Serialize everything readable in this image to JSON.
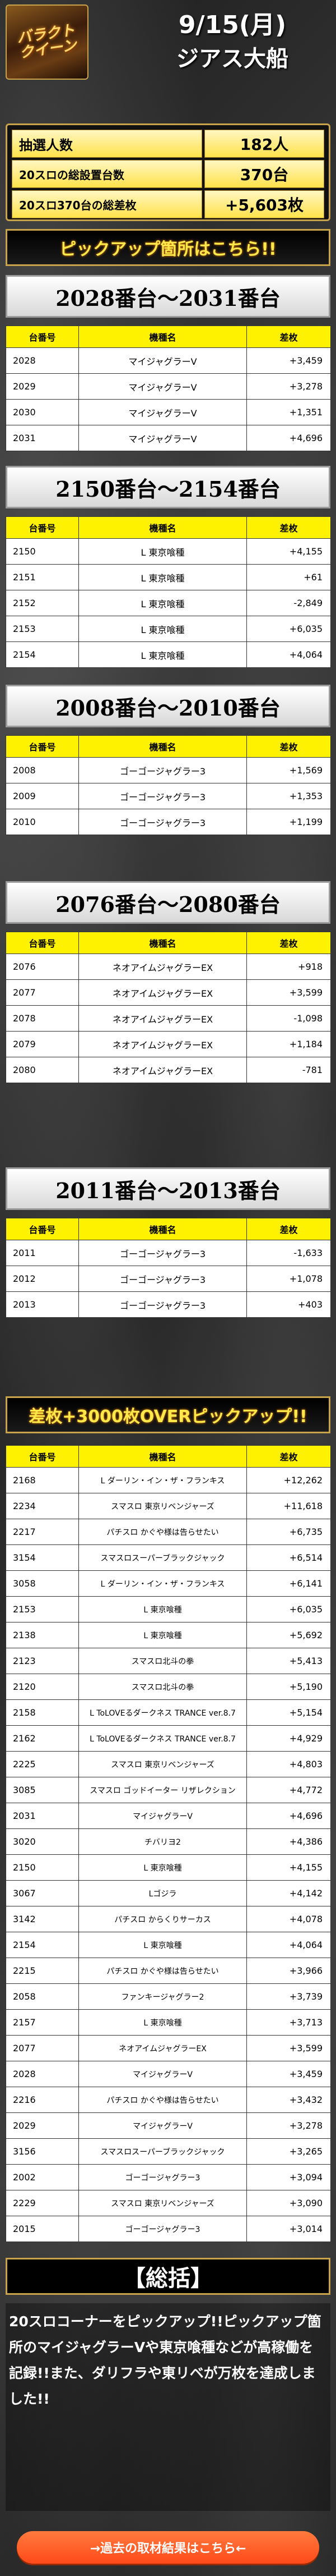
{
  "header": {
    "logo_text": "バラクト\nクイーン",
    "date": "9/15(月)",
    "store": "ジアス大船"
  },
  "summary": {
    "rows": [
      {
        "label": "抽選人数",
        "value": "182人"
      },
      {
        "label": "20スロの総設置台数",
        "value": "370台"
      },
      {
        "label": "20スロ370台の総差枚",
        "value": "+5,603枚"
      }
    ]
  },
  "banner_pickup": "ピックアップ箇所はこちら!!",
  "table_headers": {
    "num": "台番号",
    "machine": "機種名",
    "diff": "差枚"
  },
  "sections": [
    {
      "title": "2028番台～2031番台",
      "rows": [
        {
          "num": "2028",
          "machine": "マイジャグラーV",
          "diff": "+3,459"
        },
        {
          "num": "2029",
          "machine": "マイジャグラーV",
          "diff": "+3,278"
        },
        {
          "num": "2030",
          "machine": "マイジャグラーV",
          "diff": "+1,351"
        },
        {
          "num": "2031",
          "machine": "マイジャグラーV",
          "diff": "+4,696"
        }
      ]
    },
    {
      "title": "2150番台～2154番台",
      "rows": [
        {
          "num": "2150",
          "machine": "L 東京喰種",
          "diff": "+4,155"
        },
        {
          "num": "2151",
          "machine": "L 東京喰種",
          "diff": "+61"
        },
        {
          "num": "2152",
          "machine": "L 東京喰種",
          "diff": "-2,849"
        },
        {
          "num": "2153",
          "machine": "L 東京喰種",
          "diff": "+6,035"
        },
        {
          "num": "2154",
          "machine": "L 東京喰種",
          "diff": "+4,064"
        }
      ]
    },
    {
      "title": "2008番台～2010番台",
      "rows": [
        {
          "num": "2008",
          "machine": "ゴーゴージャグラー3",
          "diff": "+1,569"
        },
        {
          "num": "2009",
          "machine": "ゴーゴージャグラー3",
          "diff": "+1,353"
        },
        {
          "num": "2010",
          "machine": "ゴーゴージャグラー3",
          "diff": "+1,199"
        }
      ]
    },
    {
      "title": "2076番台～2080番台",
      "rows": [
        {
          "num": "2076",
          "machine": "ネオアイムジャグラーEX",
          "diff": "+918"
        },
        {
          "num": "2077",
          "machine": "ネオアイムジャグラーEX",
          "diff": "+3,599"
        },
        {
          "num": "2078",
          "machine": "ネオアイムジャグラーEX",
          "diff": "-1,098"
        },
        {
          "num": "2079",
          "machine": "ネオアイムジャグラーEX",
          "diff": "+1,184"
        },
        {
          "num": "2080",
          "machine": "ネオアイムジャグラーEX",
          "diff": "-781"
        }
      ]
    },
    {
      "title": "2011番台～2013番台",
      "rows": [
        {
          "num": "2011",
          "machine": "ゴーゴージャグラー3",
          "diff": "-1,633"
        },
        {
          "num": "2012",
          "machine": "ゴーゴージャグラー3",
          "diff": "+1,078"
        },
        {
          "num": "2013",
          "machine": "ゴーゴージャグラー3",
          "diff": "+403"
        }
      ]
    }
  ],
  "banner_over": "差枚+3000枚OVERピックアップ!!",
  "over_rows": [
    {
      "num": "2168",
      "machine": "L ダーリン・イン・ザ・フランキス",
      "diff": "+12,262"
    },
    {
      "num": "2234",
      "machine": "スマスロ 東京リベンジャーズ",
      "diff": "+11,618"
    },
    {
      "num": "2217",
      "machine": "パチスロ かぐや様は告らせたい",
      "diff": "+6,735"
    },
    {
      "num": "3154",
      "machine": "スマスロスーパーブラックジャック",
      "diff": "+6,514"
    },
    {
      "num": "3058",
      "machine": "L ダーリン・イン・ザ・フランキス",
      "diff": "+6,141"
    },
    {
      "num": "2153",
      "machine": "L 東京喰種",
      "diff": "+6,035"
    },
    {
      "num": "2138",
      "machine": "L 東京喰種",
      "diff": "+5,692"
    },
    {
      "num": "2123",
      "machine": "スマスロ北斗の拳",
      "diff": "+5,413"
    },
    {
      "num": "2120",
      "machine": "スマスロ北斗の拳",
      "diff": "+5,190"
    },
    {
      "num": "2158",
      "machine": "L ToLOVEるダークネス TRANCE ver.8.7",
      "diff": "+5,154"
    },
    {
      "num": "2162",
      "machine": "L ToLOVEるダークネス TRANCE ver.8.7",
      "diff": "+4,929"
    },
    {
      "num": "2225",
      "machine": "スマスロ 東京リベンジャーズ",
      "diff": "+4,803"
    },
    {
      "num": "3085",
      "machine": "スマスロ ゴッドイーター リザレクション",
      "diff": "+4,772"
    },
    {
      "num": "2031",
      "machine": "マイジャグラーV",
      "diff": "+4,696"
    },
    {
      "num": "3020",
      "machine": "チバリヨ2",
      "diff": "+4,386"
    },
    {
      "num": "2150",
      "machine": "L 東京喰種",
      "diff": "+4,155"
    },
    {
      "num": "3067",
      "machine": "Lゴジラ",
      "diff": "+4,142"
    },
    {
      "num": "3142",
      "machine": "パチスロ からくりサーカス",
      "diff": "+4,078"
    },
    {
      "num": "2154",
      "machine": "L 東京喰種",
      "diff": "+4,064"
    },
    {
      "num": "2215",
      "machine": "パチスロ かぐや様は告らせたい",
      "diff": "+3,966"
    },
    {
      "num": "2058",
      "machine": "ファンキージャグラー2",
      "diff": "+3,739"
    },
    {
      "num": "2157",
      "machine": "L 東京喰種",
      "diff": "+3,713"
    },
    {
      "num": "2077",
      "machine": "ネオアイムジャグラーEX",
      "diff": "+3,599"
    },
    {
      "num": "2028",
      "machine": "マイジャグラーV",
      "diff": "+3,459"
    },
    {
      "num": "2216",
      "machine": "パチスロ かぐや様は告らせたい",
      "diff": "+3,432"
    },
    {
      "num": "2029",
      "machine": "マイジャグラーV",
      "diff": "+3,278"
    },
    {
      "num": "3156",
      "machine": "スマスロスーパーブラックジャック",
      "diff": "+3,265"
    },
    {
      "num": "2002",
      "machine": "ゴーゴージャグラー3",
      "diff": "+3,094"
    },
    {
      "num": "2229",
      "machine": "スマスロ 東京リベンジャーズ",
      "diff": "+3,090"
    },
    {
      "num": "2015",
      "machine": "ゴーゴージャグラー3",
      "diff": "+3,014"
    }
  ],
  "conclusion": {
    "title": "【総括】",
    "body": "20スロコーナーをピックアップ!!ピックアップ箇所のマイジャグラーVや東京喰種などが高稼働を記録!!また、ダリフラや東リベが万枚を達成しました!!"
  },
  "past_link": "→過去の取材結果はこちら←"
}
